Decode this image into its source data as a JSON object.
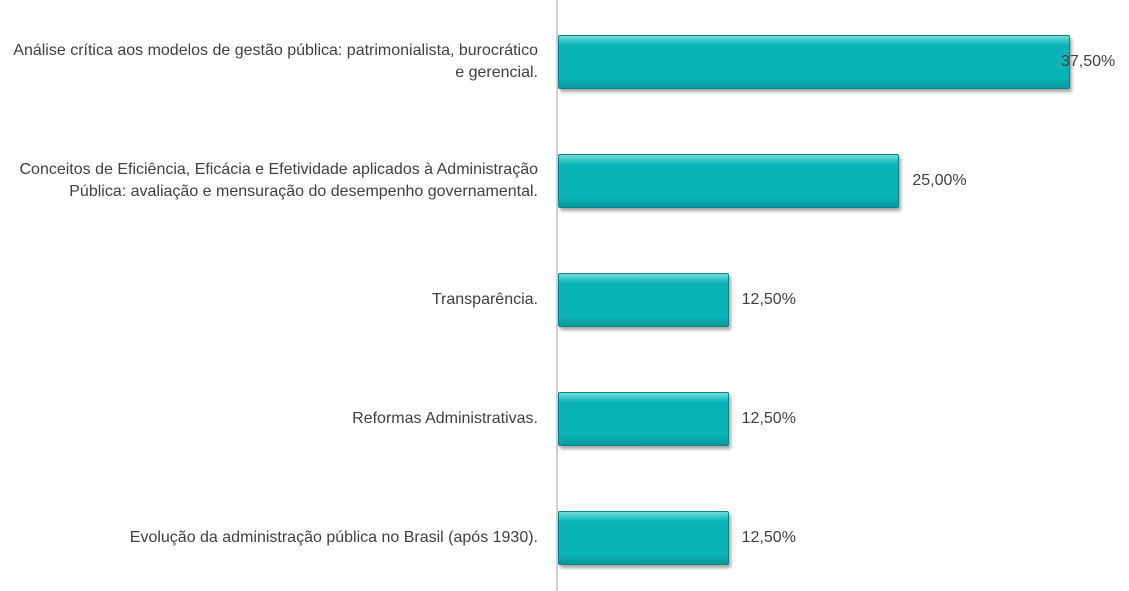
{
  "chart_data": {
    "type": "bar",
    "orientation": "horizontal",
    "categories": [
      "Análise crítica aos modelos de gestão pública: patrimonialista, burocrático e gerencial.",
      "Conceitos de Eficiência, Eficácia e Efetividade aplicados à Administração Pública: avaliação e mensuração do desempenho governamental.",
      "Transparência.",
      "Reformas Administrativas.",
      "Evolução da administração pública no Brasil (após 1930)."
    ],
    "values": [
      37.5,
      25,
      12.5,
      12.5,
      12.5
    ],
    "value_labels": [
      "37,50%",
      "25,00%",
      "12,50%",
      "12,50%",
      "12,50%"
    ],
    "color": "#0ab4b6"
  }
}
